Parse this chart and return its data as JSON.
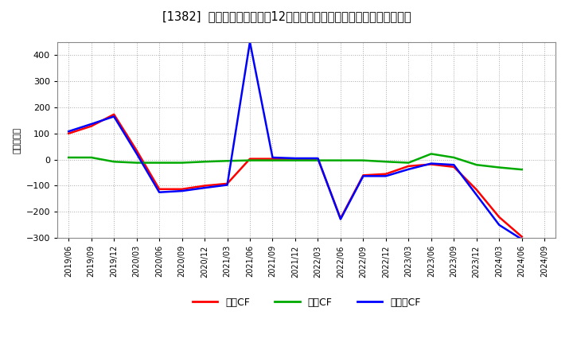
{
  "title": "[1382]  キャッシュフローの12か月移動合計の対前年同期増減額の推移",
  "ylabel": "（百万円）",
  "background_color": "#ffffff",
  "grid_color": "#aaaaaa",
  "ylim": [
    -300,
    450
  ],
  "yticks": [
    -300,
    -200,
    -100,
    0,
    100,
    200,
    300,
    400
  ],
  "xtick_labels": [
    "2019/06",
    "2019/09",
    "2019/12",
    "2020/03",
    "2020/06",
    "2020/09",
    "2020/12",
    "2021/03",
    "2021/06",
    "2021/09",
    "2021/12",
    "2022/03",
    "2022/06",
    "2022/09",
    "2022/12",
    "2023/03",
    "2023/06",
    "2023/09",
    "2023/12",
    "2024/03",
    "2024/06",
    "2024/09"
  ],
  "series": {
    "営業CF": {
      "color": "#ff0000",
      "linewidth": 1.8,
      "values": [
        100,
        128,
        173,
        35,
        -113,
        -113,
        -100,
        -92,
        3,
        3,
        3,
        3,
        -225,
        -60,
        -55,
        -25,
        -18,
        -28,
        -115,
        -220,
        -295,
        null
      ]
    },
    "投賃CF": {
      "color": "#00aa00",
      "linewidth": 1.8,
      "values": [
        8,
        8,
        -8,
        -12,
        -12,
        -12,
        -8,
        -5,
        -3,
        -3,
        -3,
        -3,
        -3,
        -3,
        -8,
        -12,
        22,
        8,
        -20,
        -30,
        -38,
        null
      ]
    },
    "フリーCF": {
      "color": "#0000ff",
      "linewidth": 1.8,
      "values": [
        108,
        136,
        165,
        23,
        -125,
        -120,
        -108,
        -97,
        450,
        8,
        5,
        5,
        -228,
        -63,
        -63,
        -37,
        -15,
        -20,
        -135,
        -250,
        -305,
        null
      ]
    }
  },
  "legend_labels": [
    "営業CF",
    "投賃CF",
    "フリーCF"
  ],
  "legend_colors": [
    "#ff0000",
    "#00aa00",
    "#0000ff"
  ]
}
